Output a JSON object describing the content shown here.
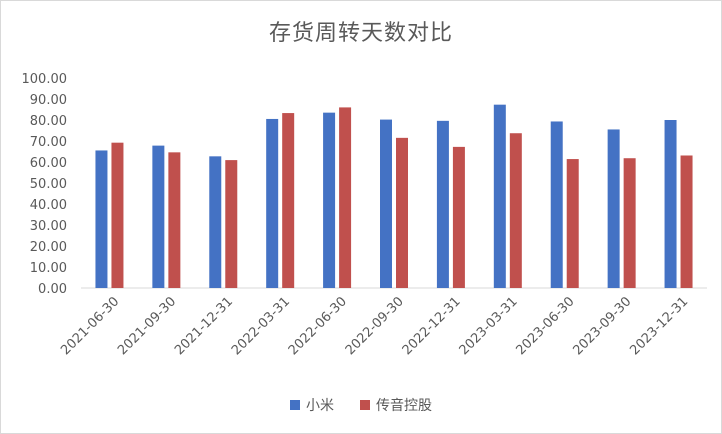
{
  "chart_data": {
    "type": "bar",
    "title": "存货周转天数对比",
    "categories": [
      "2021-06-30",
      "2021-09-30",
      "2021-12-31",
      "2022-03-31",
      "2022-06-30",
      "2022-09-30",
      "2022-12-31",
      "2023-03-31",
      "2023-06-30",
      "2023-09-30",
      "2023-12-31"
    ],
    "series": [
      {
        "name": "小米",
        "color": "#4472C4",
        "values": [
          65.5,
          67.8,
          62.7,
          80.5,
          83.5,
          80.2,
          79.6,
          87.3,
          79.3,
          75.5,
          80.0
        ]
      },
      {
        "name": "传音控股",
        "color": "#C0504D",
        "values": [
          69.2,
          64.6,
          60.9,
          83.3,
          86.0,
          71.5,
          67.2,
          73.7,
          61.4,
          61.8,
          63.1
        ]
      }
    ],
    "ylim": [
      0,
      100
    ],
    "yticks": [
      "0.00",
      "10.00",
      "20.00",
      "30.00",
      "40.00",
      "50.00",
      "60.00",
      "70.00",
      "80.00",
      "90.00",
      "100.00"
    ],
    "grid": false,
    "legend_position": "bottom"
  }
}
